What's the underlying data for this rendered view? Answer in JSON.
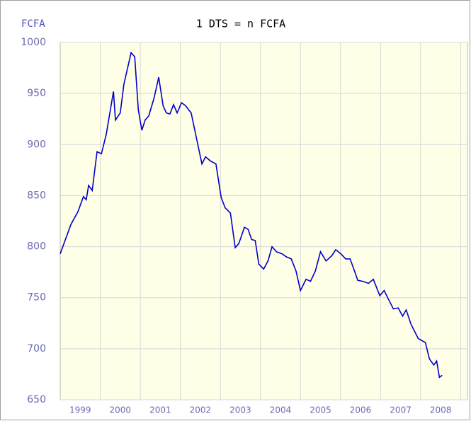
{
  "chart_data": {
    "type": "line",
    "title": "1 DTS = n FCFA",
    "y_label": "FCFA",
    "x": [
      1999.0,
      1999.27,
      1999.44,
      1999.58,
      1999.65,
      1999.71,
      1999.8,
      1999.92,
      2000.03,
      2000.15,
      2000.33,
      2000.38,
      2000.5,
      2000.59,
      2000.77,
      2000.86,
      2000.95,
      2001.04,
      2001.12,
      2001.21,
      2001.34,
      2001.46,
      2001.57,
      2001.65,
      2001.74,
      2001.83,
      2001.92,
      2002.03,
      2002.13,
      2002.27,
      2002.42,
      2002.54,
      2002.63,
      2002.75,
      2002.89,
      2003.02,
      2003.12,
      2003.25,
      2003.37,
      2003.46,
      2003.6,
      2003.69,
      2003.78,
      2003.87,
      2003.96,
      2004.08,
      2004.19,
      2004.29,
      2004.4,
      2004.54,
      2004.65,
      2004.77,
      2004.89,
      2005.0,
      2005.14,
      2005.25,
      2005.37,
      2005.5,
      2005.64,
      2005.78,
      2005.88,
      2006.01,
      2006.13,
      2006.24,
      2006.35,
      2006.43,
      2006.56,
      2006.7,
      2006.82,
      2006.98,
      2007.09,
      2007.19,
      2007.32,
      2007.44,
      2007.55,
      2007.64,
      2007.76,
      2007.94,
      2008.12,
      2008.22,
      2008.33,
      2008.4,
      2008.47,
      2008.54
    ],
    "series": [
      {
        "color": "#0000cc",
        "values": [
          793,
          822,
          834,
          849,
          846,
          860,
          855,
          893,
          891,
          910,
          952,
          924,
          931,
          959,
          990,
          986,
          934,
          914,
          924,
          928,
          945,
          966,
          938,
          931,
          930,
          939,
          931,
          941,
          938,
          931,
          903,
          881,
          888,
          884,
          881,
          848,
          838,
          833,
          799,
          803,
          819,
          817,
          807,
          806,
          783,
          778,
          786,
          800,
          795,
          793,
          790,
          788,
          776,
          757,
          768,
          766,
          776,
          795,
          786,
          791,
          797,
          793,
          788,
          788,
          776,
          767,
          766,
          764,
          768,
          752,
          757,
          749,
          739,
          740,
          732,
          738,
          724,
          710,
          706,
          690,
          684,
          688,
          672,
          674
        ]
      }
    ],
    "xlim": [
      1999,
      2009.17
    ],
    "xticks": [
      {
        "value": 1999.5,
        "label": "1999"
      },
      {
        "value": 2000.5,
        "label": "2000"
      },
      {
        "value": 2001.5,
        "label": "2001"
      },
      {
        "value": 2002.5,
        "label": "2002"
      },
      {
        "value": 2003.5,
        "label": "2003"
      },
      {
        "value": 2004.5,
        "label": "2004"
      },
      {
        "value": 2005.5,
        "label": "2005"
      },
      {
        "value": 2006.5,
        "label": "2006"
      },
      {
        "value": 2007.5,
        "label": "2007"
      },
      {
        "value": 2008.5,
        "label": "2008"
      }
    ],
    "xgrid": [
      2000,
      2001,
      2002,
      2003,
      2004,
      2005,
      2006,
      2007,
      2008,
      2009
    ],
    "ylim": [
      650,
      1000
    ],
    "yticks": [
      650,
      700,
      750,
      800,
      850,
      900,
      950,
      1000
    ],
    "grid": true
  }
}
